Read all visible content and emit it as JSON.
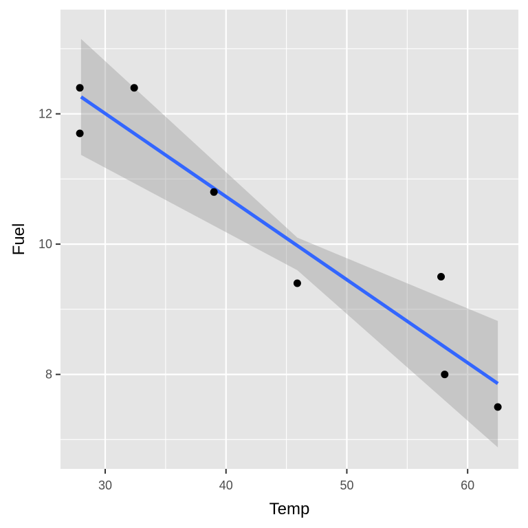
{
  "chart_data": {
    "type": "scatter",
    "xlabel": "Temp",
    "ylabel": "Fuel",
    "xlim": [
      26.3,
      64.2
    ],
    "ylim": [
      6.55,
      13.6
    ],
    "x_ticks": [
      30,
      40,
      50,
      60
    ],
    "x_tick_labels": [
      "30",
      "40",
      "50",
      "60"
    ],
    "x_minor_ticks": [
      35,
      45,
      55
    ],
    "y_ticks": [
      8,
      10,
      12
    ],
    "y_tick_labels": [
      "8",
      "10",
      "12"
    ],
    "y_minor_ticks": [
      7,
      9,
      11,
      13
    ],
    "grid": true,
    "points": [
      {
        "x": 27.9,
        "y": 12.4
      },
      {
        "x": 27.9,
        "y": 11.7
      },
      {
        "x": 32.4,
        "y": 12.4
      },
      {
        "x": 39.0,
        "y": 10.8
      },
      {
        "x": 45.9,
        "y": 9.4
      },
      {
        "x": 57.8,
        "y": 9.5
      },
      {
        "x": 58.1,
        "y": 8.0
      },
      {
        "x": 62.5,
        "y": 7.5
      }
    ],
    "fit_line": {
      "x": [
        28.0,
        62.5
      ],
      "y": [
        12.26,
        7.86
      ]
    },
    "confidence_band": {
      "x": [
        28.0,
        45.9,
        62.5
      ],
      "upper": [
        13.15,
        10.1,
        8.82
      ],
      "lower": [
        11.37,
        9.6,
        6.88
      ]
    },
    "colors": {
      "panel": "#e5e5e5",
      "grid": "#ffffff",
      "point": "#000000",
      "fit_line": "#3366ff",
      "band": "#999999",
      "tick": "#333333"
    }
  }
}
